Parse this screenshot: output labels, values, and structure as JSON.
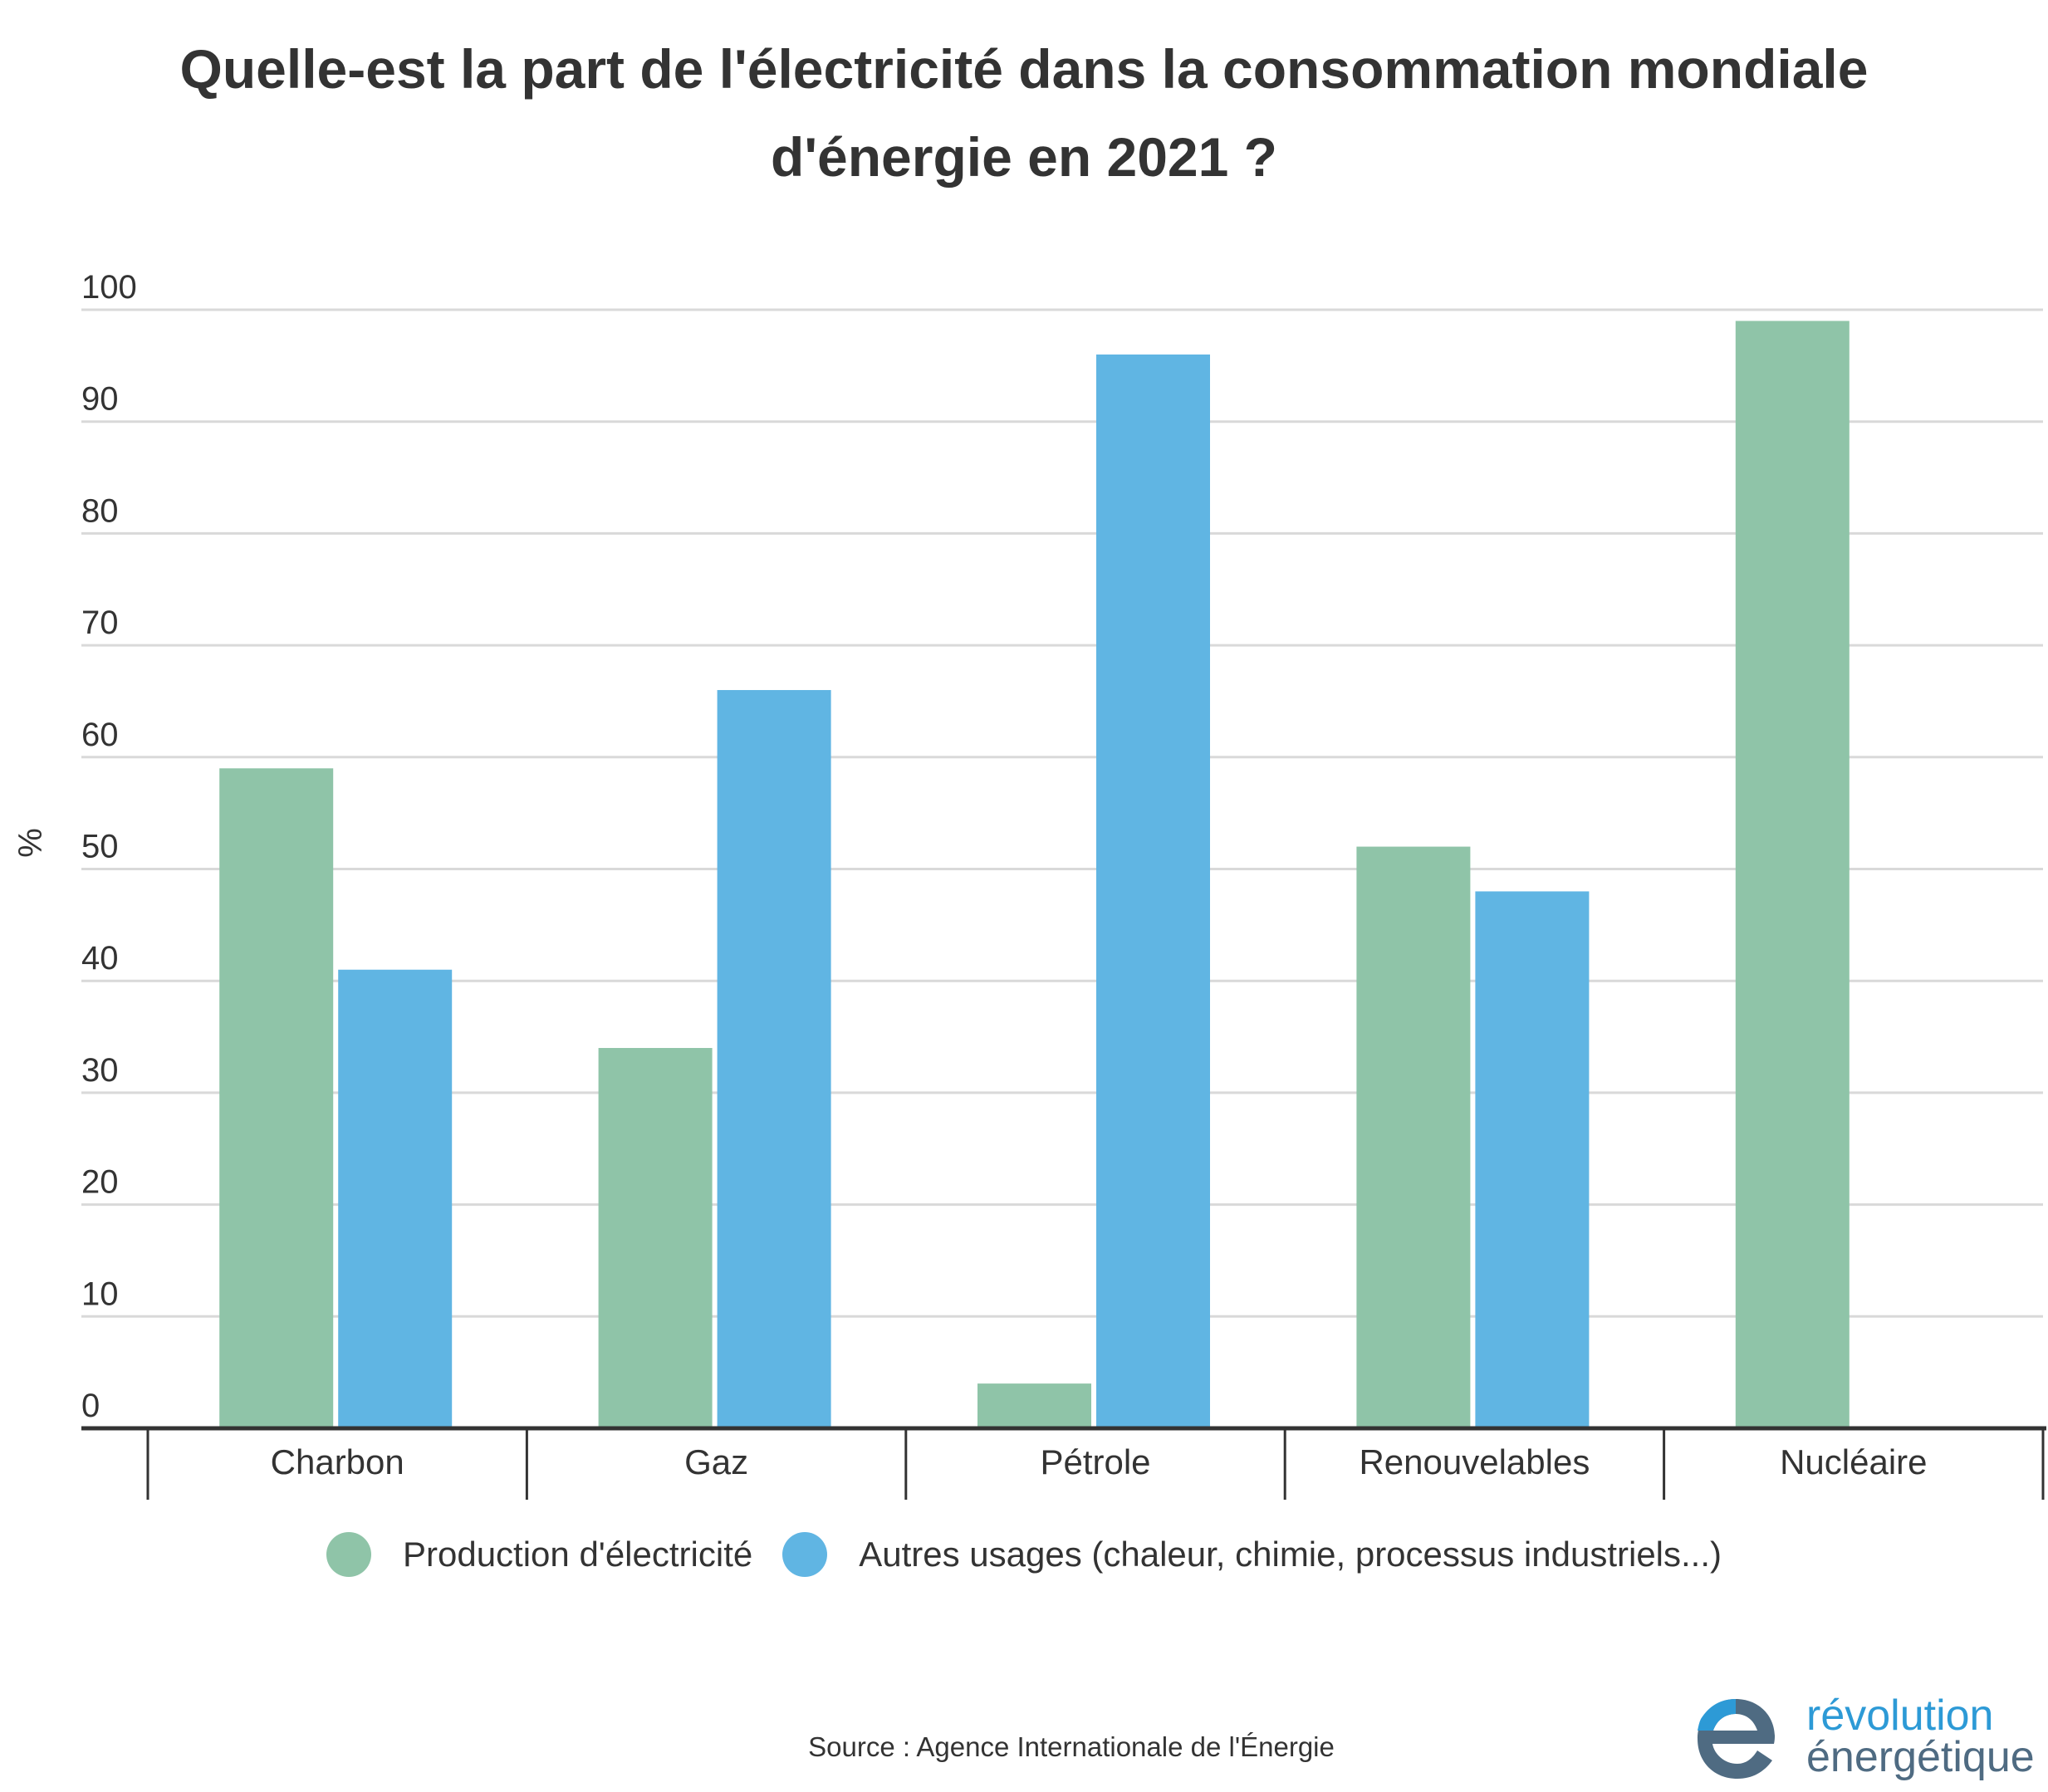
{
  "colors": {
    "series_1": "#8fc4a8",
    "series_2": "#60b5e3",
    "text": "#333333",
    "grid": "#d9d9d9",
    "axis": "#333333",
    "logo_blue": "#2d9ad6",
    "logo_slate": "#4f6b82"
  },
  "chart_data": {
    "type": "bar",
    "title": "Quelle-est la part de l'électricité dans la consommation mondiale d'énergie en 2021 ?",
    "ylabel": "%",
    "xlabel": "",
    "ylim": [
      0,
      100
    ],
    "yticks": [
      0,
      10,
      20,
      30,
      40,
      50,
      60,
      70,
      80,
      90,
      100
    ],
    "grid": true,
    "legend_position": "bottom",
    "categories": [
      "Charbon",
      "Gaz",
      "Pétrole",
      "Renouvelables",
      "Nucléaire"
    ],
    "series": [
      {
        "name": "Production d'électricité",
        "values": [
          59,
          34,
          4,
          52,
          99
        ]
      },
      {
        "name": "Autres usages (chaleur, chimie, processus industriels...)",
        "values": [
          41,
          66,
          96,
          48,
          0
        ]
      }
    ]
  },
  "footer": {
    "source": "Source : Agence Internationale de l'Énergie"
  },
  "logo": {
    "line1": "révolution",
    "line2": "énergétique",
    "icon": "e-letter-logo-icon"
  }
}
